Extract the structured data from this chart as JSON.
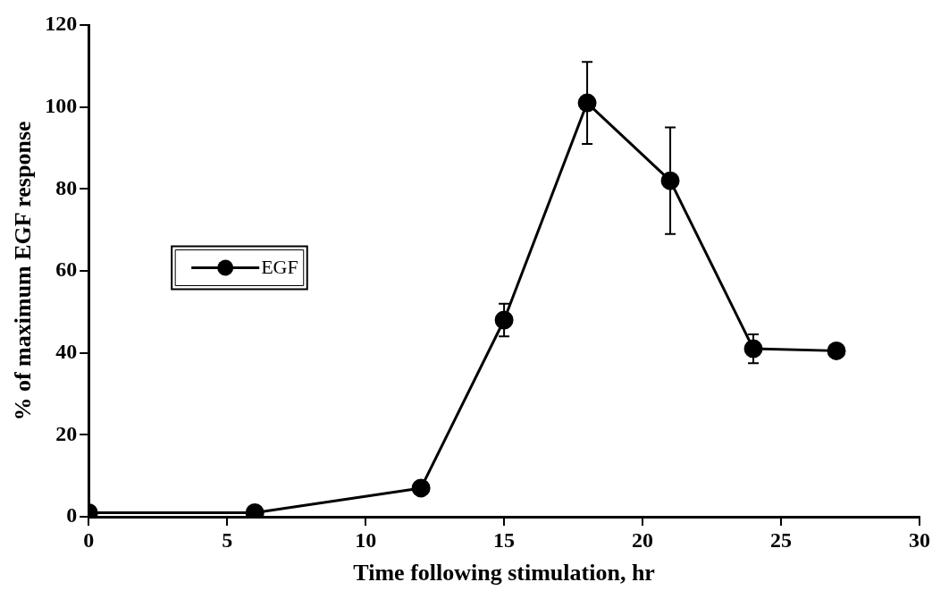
{
  "chart_data": {
    "type": "line",
    "xlabel": "Time following stimulation, hr",
    "ylabel": "% of maximum EGF response",
    "x": [
      0,
      6,
      12,
      15,
      18,
      21,
      24,
      27
    ],
    "series": [
      {
        "name": "EGF",
        "color": "#000000",
        "values": [
          1,
          1,
          7,
          48,
          101,
          82,
          41,
          40.5
        ],
        "errors": [
          null,
          null,
          null,
          4,
          10,
          13,
          3.5,
          null
        ]
      }
    ],
    "xlim": [
      0,
      30
    ],
    "xticks": [
      0,
      5,
      10,
      15,
      20,
      25,
      30
    ],
    "ylim": [
      0,
      120
    ],
    "yticks": [
      0,
      20,
      40,
      60,
      80,
      100,
      120
    ],
    "grid": false,
    "legend": "left",
    "marker": "circle",
    "line_style": "solid"
  }
}
